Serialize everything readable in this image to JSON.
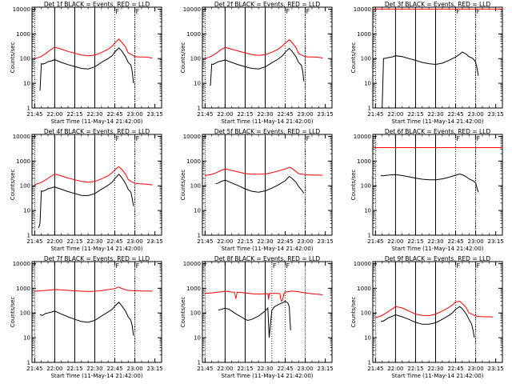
{
  "page": {
    "background": "#ffffff"
  },
  "style": {
    "events_color": "#000000",
    "lld_color": "#ff0000",
    "axis_color": "#000000"
  },
  "common": {
    "xlabel": "Start Time (11-May-14 21:42:00)",
    "ylabel": "Counts/sec",
    "x_ticks": [
      "21:45",
      "22:00",
      "22:15",
      "22:30",
      "22:45",
      "23:00",
      "23:15"
    ],
    "x_ticks_min": [
      0,
      15,
      30,
      45,
      60,
      75,
      90
    ],
    "xlim_min": [
      -2,
      95
    ],
    "y_ticks": [
      "1",
      "10",
      "100",
      "1000",
      "10000"
    ],
    "y_ticks_val": [
      1,
      10,
      100,
      1000,
      10000
    ],
    "ylim": [
      1,
      12000
    ],
    "yscale": "log",
    "solid_vlines_min": [
      15,
      30,
      45
    ],
    "dotted_vlines_min": [
      0,
      75
    ]
  },
  "chart_data": [
    {
      "type": "line",
      "title": "Det 1f BLACK = Events, RED = LLD",
      "flag_label": "F",
      "flag_vlines_min": [
        60,
        75
      ],
      "series": [
        {
          "color": "#ff0000",
          "x": [
            0,
            4,
            8,
            12,
            15,
            20,
            25,
            30,
            35,
            40,
            45,
            50,
            55,
            58,
            60,
            63,
            65,
            68,
            70,
            72,
            75,
            78,
            82,
            86,
            88
          ],
          "y": [
            100,
            115,
            155,
            230,
            290,
            240,
            195,
            165,
            140,
            130,
            140,
            175,
            240,
            320,
            430,
            620,
            470,
            300,
            170,
            150,
            120,
            115,
            115,
            110,
            105
          ]
        },
        {
          "color": "#000000",
          "x": [
            4,
            5,
            6,
            8,
            10,
            13,
            15,
            20,
            25,
            30,
            35,
            40,
            45,
            50,
            55,
            58,
            60,
            63,
            65,
            68,
            70,
            72,
            73,
            74
          ],
          "y": [
            5,
            62,
            60,
            65,
            75,
            82,
            90,
            70,
            57,
            48,
            40,
            38,
            46,
            70,
            100,
            130,
            185,
            270,
            210,
            120,
            70,
            55,
            30,
            10
          ]
        }
      ]
    },
    {
      "type": "line",
      "title": "Det 2f BLACK = Events, RED = LLD",
      "flag_label": "F",
      "flag_vlines_min": [
        60,
        75
      ],
      "series": [
        {
          "color": "#ff0000",
          "x": [
            0,
            4,
            8,
            12,
            15,
            20,
            25,
            30,
            35,
            40,
            45,
            50,
            55,
            58,
            60,
            63,
            65,
            68,
            70,
            72,
            75,
            78,
            82,
            86,
            88
          ],
          "y": [
            100,
            120,
            160,
            235,
            280,
            240,
            200,
            170,
            145,
            135,
            145,
            180,
            245,
            330,
            420,
            580,
            450,
            280,
            160,
            140,
            120,
            115,
            115,
            110,
            105
          ]
        },
        {
          "color": "#000000",
          "x": [
            4,
            5,
            6,
            8,
            10,
            13,
            15,
            20,
            25,
            30,
            35,
            40,
            45,
            50,
            55,
            58,
            60,
            63,
            65,
            68,
            70,
            72,
            73,
            74
          ],
          "y": [
            8,
            60,
            58,
            66,
            75,
            82,
            88,
            70,
            56,
            47,
            40,
            38,
            46,
            68,
            98,
            130,
            180,
            260,
            200,
            120,
            70,
            55,
            32,
            12
          ]
        }
      ]
    },
    {
      "type": "line",
      "title": "Det 3f BLACK = Events, RED = LLD",
      "flag_label": "F",
      "flag_vlines_min": [
        60,
        75
      ],
      "series": [
        {
          "color": "#ff0000",
          "x": [
            -2,
            95
          ],
          "y": [
            10000,
            10000
          ]
        },
        {
          "color": "#000000",
          "x": [
            5,
            6,
            8,
            10,
            13,
            15,
            20,
            25,
            30,
            35,
            40,
            45,
            50,
            55,
            60,
            63,
            65,
            68,
            70,
            73,
            75,
            76,
            77
          ],
          "y": [
            1,
            100,
            105,
            110,
            118,
            130,
            120,
            100,
            85,
            70,
            62,
            58,
            65,
            85,
            115,
            150,
            185,
            150,
            120,
            100,
            70,
            40,
            20
          ]
        }
      ]
    },
    {
      "type": "line",
      "title": "Det 4f BLACK = Events, RED = LLD",
      "flag_label": "F",
      "flag_vlines_min": [
        60,
        75
      ],
      "series": [
        {
          "color": "#ff0000",
          "x": [
            0,
            4,
            8,
            12,
            15,
            20,
            25,
            30,
            35,
            40,
            45,
            50,
            55,
            58,
            60,
            63,
            65,
            68,
            70,
            72,
            75,
            78,
            82,
            86,
            88
          ],
          "y": [
            110,
            130,
            170,
            240,
            300,
            250,
            205,
            175,
            150,
            140,
            150,
            190,
            255,
            340,
            440,
            600,
            470,
            300,
            180,
            150,
            125,
            120,
            118,
            112,
            108
          ]
        },
        {
          "color": "#000000",
          "x": [
            3,
            4,
            5,
            6,
            8,
            10,
            13,
            15,
            20,
            25,
            30,
            35,
            40,
            45,
            50,
            55,
            58,
            60,
            63,
            65,
            68,
            70,
            72,
            73,
            74
          ],
          "y": [
            2,
            3,
            62,
            60,
            66,
            76,
            84,
            90,
            72,
            58,
            49,
            41,
            40,
            48,
            72,
            105,
            140,
            195,
            290,
            220,
            125,
            72,
            55,
            30,
            15
          ]
        }
      ]
    },
    {
      "type": "line",
      "title": "Det 5f BLACK = Events, RED = LLD",
      "flag_label": "F",
      "flag_vlines_min": [
        75
      ],
      "series": [
        {
          "color": "#ff0000",
          "x": [
            0,
            4,
            8,
            12,
            15,
            20,
            25,
            30,
            35,
            40,
            45,
            50,
            55,
            60,
            63,
            65,
            68,
            70,
            75,
            80,
            85,
            88
          ],
          "y": [
            260,
            280,
            330,
            420,
            480,
            420,
            360,
            310,
            295,
            295,
            300,
            340,
            400,
            480,
            560,
            500,
            380,
            310,
            280,
            270,
            270,
            265
          ]
        },
        {
          "color": "#000000",
          "x": [
            8,
            10,
            12,
            15,
            20,
            25,
            30,
            35,
            40,
            45,
            50,
            55,
            60,
            63,
            65,
            68,
            70,
            72,
            74
          ],
          "y": [
            120,
            130,
            150,
            170,
            130,
            100,
            75,
            60,
            55,
            62,
            80,
            110,
            160,
            240,
            200,
            140,
            95,
            70,
            50
          ]
        }
      ]
    },
    {
      "type": "line",
      "title": "Det 6f BLACK = Events, RED = LLD",
      "flag_label": "F",
      "flag_vlines_min": [
        60,
        75
      ],
      "series": [
        {
          "color": "#ff0000",
          "x": [
            -2,
            95
          ],
          "y": [
            3500,
            3500
          ]
        },
        {
          "color": "#000000",
          "x": [
            4,
            6,
            8,
            10,
            13,
            15,
            20,
            25,
            30,
            35,
            40,
            45,
            50,
            55,
            60,
            63,
            65,
            68,
            70,
            73,
            75,
            76,
            77
          ],
          "y": [
            260,
            255,
            265,
            270,
            280,
            280,
            260,
            230,
            205,
            185,
            175,
            175,
            190,
            220,
            270,
            300,
            280,
            230,
            190,
            160,
            130,
            80,
            55
          ]
        }
      ]
    },
    {
      "type": "line",
      "title": "Det 7f BLACK = Events, RED = LLD",
      "flag_label": "F",
      "flag_vlines_min": [
        60,
        75
      ],
      "series": [
        {
          "color": "#ff0000",
          "x": [
            0,
            5,
            10,
            15,
            20,
            25,
            30,
            35,
            40,
            45,
            50,
            55,
            60,
            63,
            65,
            68,
            70,
            75,
            80,
            85,
            88
          ],
          "y": [
            760,
            790,
            830,
            880,
            860,
            820,
            790,
            760,
            740,
            760,
            810,
            880,
            970,
            1120,
            990,
            870,
            820,
            790,
            780,
            770,
            760
          ]
        },
        {
          "color": "#000000",
          "x": [
            4,
            6,
            8,
            10,
            13,
            15,
            20,
            25,
            30,
            35,
            40,
            45,
            50,
            55,
            58,
            60,
            63,
            65,
            68,
            70,
            72,
            73,
            74
          ],
          "y": [
            85,
            80,
            95,
            100,
            110,
            120,
            90,
            70,
            55,
            45,
            42,
            50,
            75,
            110,
            140,
            190,
            270,
            200,
            120,
            70,
            50,
            30,
            12
          ]
        }
      ]
    },
    {
      "type": "line",
      "title": "Det 8f BLACK = Events, RED = LLD",
      "flag_label": "F",
      "flag_vlines_min": [
        50,
        60
      ],
      "series": [
        {
          "color": "#ff0000",
          "x": [
            0,
            5,
            10,
            15,
            20,
            22,
            23,
            24,
            30,
            35,
            40,
            45,
            47,
            47.5,
            48,
            50,
            55,
            56,
            57,
            58,
            59,
            60,
            65,
            70,
            75,
            80,
            85,
            88
          ],
          "y": [
            620,
            650,
            700,
            760,
            700,
            690,
            380,
            690,
            650,
            600,
            580,
            600,
            610,
            350,
            610,
            620,
            620,
            600,
            300,
            330,
            610,
            700,
            780,
            720,
            650,
            600,
            570,
            540
          ]
        },
        {
          "color": "#000000",
          "x": [
            10,
            12,
            15,
            18,
            20,
            22,
            25,
            28,
            30,
            32,
            35,
            40,
            45,
            47,
            48,
            50,
            52,
            55,
            58,
            60,
            62,
            63,
            64
          ],
          "y": [
            130,
            140,
            155,
            140,
            120,
            100,
            80,
            65,
            55,
            50,
            55,
            75,
            120,
            160,
            10,
            130,
            180,
            220,
            260,
            300,
            250,
            180,
            20
          ]
        }
      ]
    },
    {
      "type": "line",
      "title": "Det 9f BLACK = Events, RED = LLD",
      "flag_label": "F",
      "flag_vlines_min": [
        60,
        75
      ],
      "series": [
        {
          "color": "#ff0000",
          "x": [
            0,
            4,
            8,
            12,
            15,
            20,
            25,
            30,
            35,
            40,
            45,
            50,
            55,
            58,
            60,
            63,
            65,
            68,
            70,
            72,
            75,
            78,
            82,
            86,
            88
          ],
          "y": [
            65,
            75,
            100,
            140,
            180,
            160,
            120,
            90,
            80,
            78,
            90,
            120,
            170,
            220,
            280,
            300,
            240,
            160,
            100,
            90,
            75,
            72,
            70,
            70,
            68
          ]
        },
        {
          "color": "#000000",
          "x": [
            4,
            6,
            8,
            10,
            13,
            15,
            20,
            25,
            30,
            35,
            40,
            45,
            50,
            55,
            58,
            60,
            63,
            65,
            68,
            70,
            72,
            73,
            74
          ],
          "y": [
            45,
            48,
            55,
            65,
            75,
            85,
            70,
            55,
            42,
            35,
            35,
            40,
            55,
            80,
            105,
            140,
            180,
            150,
            90,
            55,
            35,
            20,
            10
          ]
        }
      ]
    }
  ]
}
